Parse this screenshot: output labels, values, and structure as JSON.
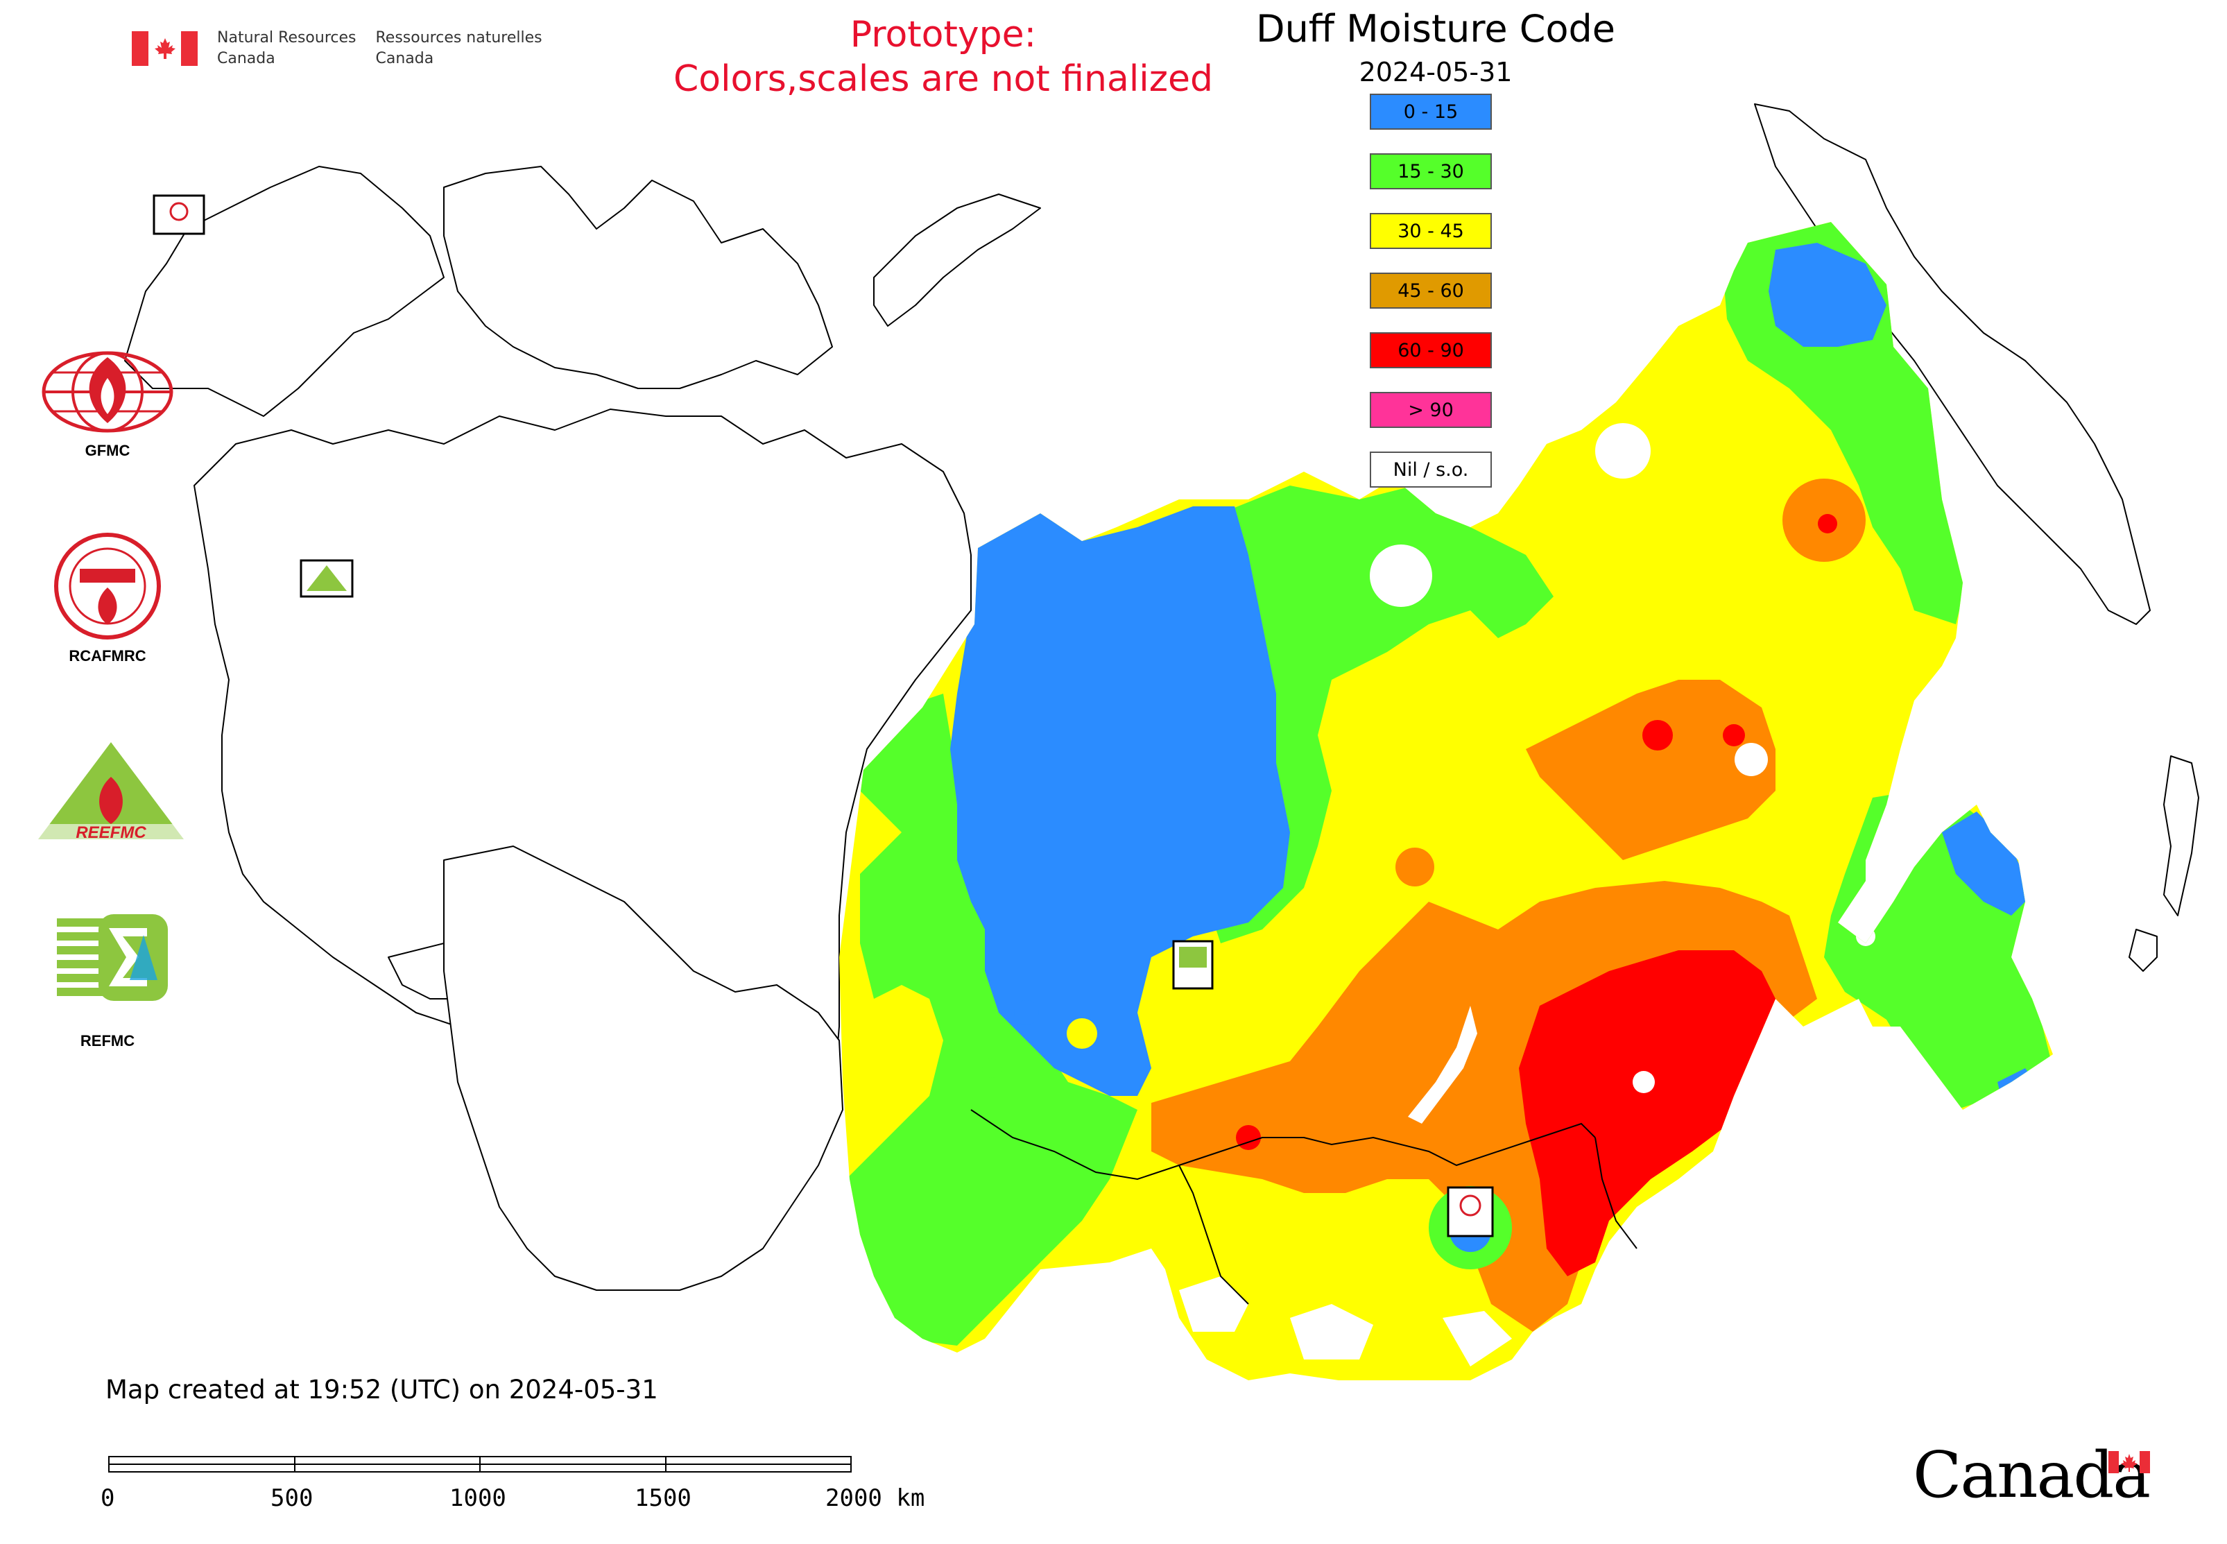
{
  "header": {
    "dept_en": "Natural Resources\nCanada",
    "dept_fr": "Ressources naturelles\nCanada",
    "prototype_notice": "Prototype:\nColors,scales are not finalized",
    "map_title": "Duff Moisture Code",
    "map_date": "2024-05-31"
  },
  "legend": [
    {
      "label": "0 - 15",
      "color": "#2b8cff"
    },
    {
      "label": "15 - 30",
      "color": "#55ff2a"
    },
    {
      "label": "30 - 45",
      "color": "#ffff00"
    },
    {
      "label": "45 - 60",
      "color": "#e09a00"
    },
    {
      "label": "60 - 90",
      "color": "#ff0000"
    },
    {
      "label": "> 90",
      "color": "#ff3399"
    },
    {
      "label": "Nil / s.o.",
      "color": "#ffffff"
    }
  ],
  "partners": [
    {
      "label": "GFMC",
      "icon": "gfmc-globe-icon"
    },
    {
      "label": "RCAFMRC",
      "icon": "rcafmrc-seal-icon"
    },
    {
      "label": "REEFMC",
      "icon": "reefmc-triangle-icon"
    },
    {
      "label": "REFMC",
      "icon": "refmc-sigma-icon"
    }
  ],
  "footer": {
    "created": "Map created at 19:52 (UTC) on 2024-05-31",
    "scale_labels": [
      "0",
      "500",
      "1000",
      "1500",
      "2000 km"
    ],
    "wordmark": "Canada"
  }
}
